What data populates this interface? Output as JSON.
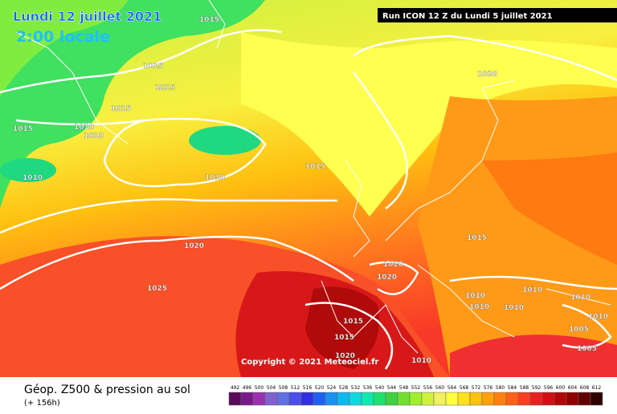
{
  "header": {
    "date": "Lundi 12 juillet 2021",
    "time": "2:00 locale",
    "run": "Run ICON 12 Z du Lundi 5 juillet 2021"
  },
  "copyright": "Copyright © 2021 Meteociel.fr",
  "footer": {
    "title": "Géop. Z500 & pression au sol",
    "lead": "(+ 156h)"
  },
  "isobar_labels": [
    1015,
    1015,
    1015,
    1015,
    1015,
    1010,
    1010,
    1010,
    1010,
    1015,
    1020,
    1015,
    1020,
    1020,
    1020,
    1025,
    1010,
    1010,
    1010,
    1010,
    1010,
    1015,
    1015,
    1010,
    1005,
    1005,
    1010,
    1020
  ],
  "legend": {
    "values": [
      492,
      496,
      500,
      504,
      508,
      512,
      516,
      520,
      524,
      528,
      532,
      536,
      540,
      544,
      548,
      552,
      556,
      560,
      564,
      568,
      572,
      576,
      580,
      584,
      588,
      592,
      596,
      600,
      604,
      608,
      612
    ],
    "colors": [
      "#5a0a5a",
      "#7a1a8a",
      "#9a30b0",
      "#8060d0",
      "#6070e0",
      "#4a50e8",
      "#3030e0",
      "#2060f0",
      "#1a90f0",
      "#10b8f0",
      "#10d8e0",
      "#10e8b0",
      "#20e070",
      "#40d040",
      "#70e030",
      "#a0ee30",
      "#d0f040",
      "#f0f060",
      "#ffff40",
      "#ffe020",
      "#ffc010",
      "#ffa010",
      "#ff8010",
      "#ff6018",
      "#f84020",
      "#e82020",
      "#d01010",
      "#b00808",
      "#900000",
      "#600000",
      "#300000"
    ]
  }
}
